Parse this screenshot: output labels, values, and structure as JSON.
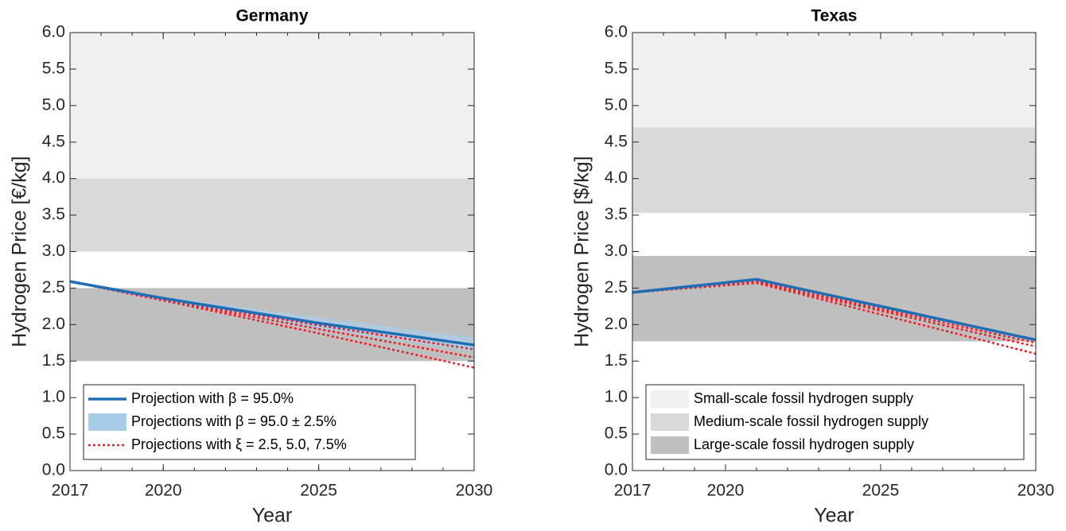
{
  "chart_data": [
    {
      "type": "line",
      "title": "Germany",
      "x_label": "Year",
      "y_label": "Hydrogen Price [€/kg]",
      "xlim": [
        2017,
        2030
      ],
      "xticks": [
        2017,
        2020,
        2025,
        2030
      ],
      "ylim": [
        0,
        6
      ],
      "yticks": [
        {
          "value": 0,
          "label": "0.0"
        },
        {
          "value": 0.5,
          "label": "0.5"
        },
        {
          "value": 1,
          "label": "1.0"
        },
        {
          "value": 1.5,
          "label": "1.5"
        },
        {
          "value": 2,
          "label": "2.0"
        },
        {
          "value": 2.5,
          "label": "2.5"
        },
        {
          "value": 3,
          "label": "3.0"
        },
        {
          "value": 3.5,
          "label": "3.5"
        },
        {
          "value": 4,
          "label": "4.0"
        },
        {
          "value": 4.5,
          "label": "4.5"
        },
        {
          "value": 5,
          "label": "5.0"
        },
        {
          "value": 5.5,
          "label": "5.5"
        },
        {
          "value": 6,
          "label": "6.0"
        }
      ],
      "bands": [
        {
          "color": "#f0f0f0",
          "range": [
            4,
            6
          ]
        },
        {
          "color": "#d9d9d9",
          "range": [
            3,
            4
          ]
        },
        {
          "color": "#bfbfbf",
          "range": [
            1.5,
            2.5
          ]
        }
      ],
      "x": [
        2017,
        2020,
        2025,
        2030
      ],
      "area": {
        "name": "Projections with β = 95.0 ± 2.5%",
        "color": "#a9cce8",
        "upper": [
          2.59,
          2.38,
          2.1,
          1.82
        ],
        "lower": [
          2.59,
          2.33,
          1.95,
          1.63
        ]
      },
      "series": [
        {
          "name": "Projection with β = 95.0%",
          "color": "#1f6db5",
          "values": [
            2.59,
            2.36,
            2.02,
            1.72
          ]
        }
      ],
      "dotted": {
        "name": "Projections with ξ = 2.5, 5.0, 7.5%",
        "color": "#ee1c24",
        "lines": [
          [
            2.59,
            2.35,
            1.99,
            1.66
          ],
          [
            2.59,
            2.34,
            1.94,
            1.55
          ],
          [
            2.59,
            2.33,
            1.88,
            1.41
          ]
        ]
      },
      "legend": "lower left"
    },
    {
      "type": "line",
      "title": "Texas",
      "x_label": "Year",
      "y_label": "Hydrogen Price [$/kg]",
      "xlim": [
        2017,
        2030
      ],
      "xticks": [
        2017,
        2020,
        2025,
        2030
      ],
      "ylim": [
        0,
        6
      ],
      "yticks": [
        {
          "value": 0,
          "label": "0.0"
        },
        {
          "value": 0.5,
          "label": "0.5"
        },
        {
          "value": 1,
          "label": "1.0"
        },
        {
          "value": 1.5,
          "label": "1.5"
        },
        {
          "value": 2,
          "label": "2.0"
        },
        {
          "value": 2.5,
          "label": "2.5"
        },
        {
          "value": 3,
          "label": "3.0"
        },
        {
          "value": 3.5,
          "label": "3.5"
        },
        {
          "value": 4,
          "label": "4.0"
        },
        {
          "value": 4.5,
          "label": "4.5"
        },
        {
          "value": 5,
          "label": "5.0"
        },
        {
          "value": 5.5,
          "label": "5.5"
        },
        {
          "value": 6,
          "label": "6.0"
        }
      ],
      "bands": [
        {
          "name": "Small-scale fossil hydrogen supply",
          "color": "#f0f0f0",
          "range": [
            4.7,
            6
          ]
        },
        {
          "name": "Medium-scale fossil hydrogen supply",
          "color": "#d9d9d9",
          "range": [
            3.53,
            4.7
          ]
        },
        {
          "name": "Large-scale fossil hydrogen supply",
          "color": "#bfbfbf",
          "range": [
            1.77,
            2.94
          ]
        }
      ],
      "x": [
        2017,
        2021,
        2030
      ],
      "area": {
        "color": "#a9cce8",
        "upper": [
          2.44,
          2.63,
          1.81
        ],
        "lower": [
          2.44,
          2.6,
          1.77
        ]
      },
      "series": [
        {
          "color": "#1f6db5",
          "values": [
            2.44,
            2.62,
            1.79
          ]
        }
      ],
      "dotted": {
        "color": "#ee1c24",
        "lines": [
          [
            2.44,
            2.59,
            1.75
          ],
          [
            2.44,
            2.58,
            1.7
          ],
          [
            2.44,
            2.57,
            1.6
          ]
        ]
      },
      "legend": "lower left"
    }
  ]
}
